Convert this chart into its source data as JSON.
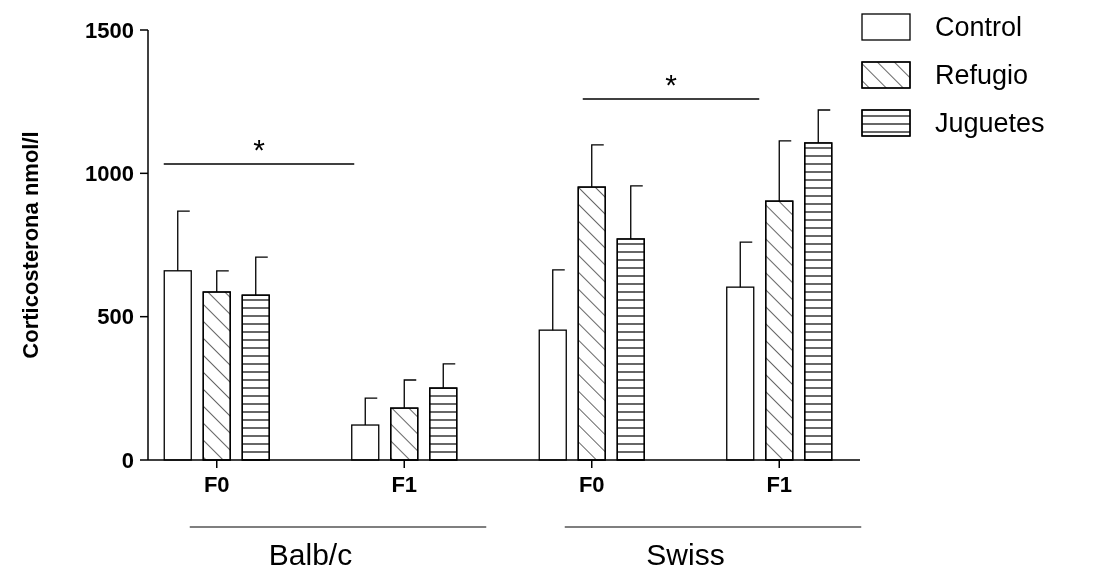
{
  "chart_data": {
    "type": "bar",
    "ylabel": "Corticosterona nmol/l",
    "categories": [
      "F0",
      "F1",
      "F0",
      "F1"
    ],
    "series": [
      {
        "name": "Control",
        "color": "#ffffff",
        "values": [
          660,
          122,
          453,
          603
        ],
        "errors": [
          [
            660,
            868
          ],
          [
            122,
            216
          ],
          [
            453,
            663
          ],
          [
            603,
            760
          ]
        ]
      },
      {
        "name": "Refugio",
        "color": "#ffffff",
        "values": [
          586,
          181,
          952,
          903
        ],
        "errors": [
          [
            586,
            660
          ],
          [
            181,
            279
          ],
          [
            952,
            1099
          ],
          [
            903,
            1113
          ]
        ]
      },
      {
        "name": "Juguetes",
        "color": "#ffffff",
        "values": [
          575,
          251,
          771,
          1106
        ],
        "errors": [
          [
            575,
            708
          ],
          [
            251,
            335
          ],
          [
            771,
            956
          ],
          [
            1106,
            1221
          ]
        ]
      }
    ],
    "ylim": [
      0,
      1500
    ],
    "yticks": [
      0,
      500,
      1000,
      1500
    ],
    "legend": "top right",
    "grid": false,
    "annotations": [
      "Balb/c",
      "Swiss",
      "*",
      "*"
    ]
  }
}
